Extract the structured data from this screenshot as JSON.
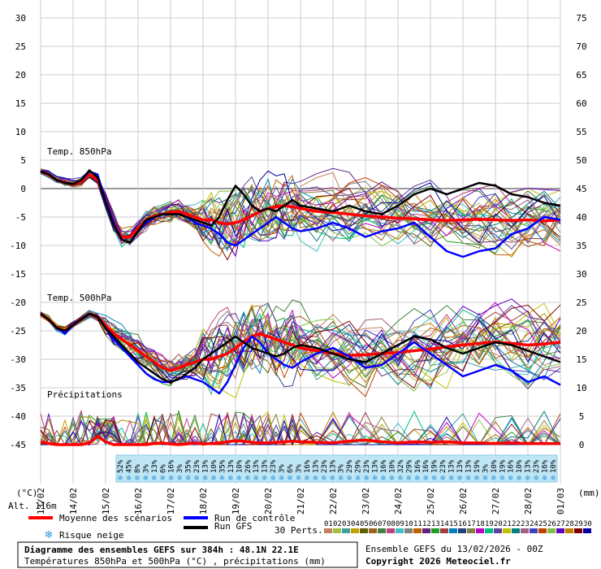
{
  "chart_data": {
    "type": "line",
    "title": "Diagramme des ensembles GEFS sur 384h : 48.1N 22.1E",
    "subtitle": "Températures 850hPa et 500hPa (°C) , précipitations (mm)",
    "ensemble_label": "Ensemble GEFS du 13/02/2026 - 00Z",
    "copyright": "Copyright 2026 Meteociel.fr",
    "altitude_label": "Alt. 116m",
    "left_unit": "(°C)",
    "right_unit": "(mm)",
    "left_ticks": [
      30,
      25,
      20,
      15,
      10,
      5,
      0,
      -5,
      -10,
      -15,
      -20,
      -25,
      -30,
      -35,
      -40,
      -45
    ],
    "right_ticks": [
      75,
      70,
      65,
      60,
      55,
      50,
      45,
      40,
      35,
      30,
      25,
      20,
      15,
      10,
      5,
      0
    ],
    "x_ticks": [
      "13/02",
      "14/02",
      "15/02",
      "16/02",
      "17/02",
      "18/02",
      "19/02",
      "20/02",
      "21/02",
      "22/02",
      "23/02",
      "24/02",
      "25/02",
      "26/02",
      "27/02",
      "28/02",
      "01/03"
    ],
    "ylim": [
      -45,
      30
    ],
    "y2lim": [
      0,
      75
    ],
    "panels": [
      {
        "name": "Temp. 850hPa"
      },
      {
        "name": "Temp. 500hPa"
      },
      {
        "name": "Précipitations"
      }
    ],
    "x_days": [
      0,
      0.25,
      0.5,
      0.75,
      1,
      1.25,
      1.5,
      1.75,
      2,
      2.25,
      2.5,
      2.75,
      3,
      3.25,
      3.5,
      3.75,
      4,
      4.25,
      4.5,
      4.75,
      5,
      5.25,
      5.5,
      5.75,
      6,
      6.25,
      6.5,
      6.75,
      7,
      7.25,
      7.5,
      7.75,
      8,
      8.5,
      9,
      9.5,
      10,
      10.5,
      11,
      11.5,
      12,
      12.5,
      13,
      13.5,
      14,
      14.5,
      15,
      15.5,
      16
    ],
    "series": [
      {
        "name": "Moyenne des scénarios",
        "color": "#ff0000",
        "panel": "t850",
        "values": [
          3,
          2.5,
          1.5,
          1,
          0.8,
          1.2,
          2.5,
          1.5,
          -2,
          -6,
          -8.5,
          -8.5,
          -7,
          -5.5,
          -4.8,
          -4.5,
          -4.2,
          -4,
          -4.5,
          -5,
          -5.5,
          -5.5,
          -6,
          -6.2,
          -6,
          -5.5,
          -4.8,
          -4,
          -3.5,
          -3.2,
          -3,
          -3.2,
          -3.5,
          -4,
          -4.2,
          -4.5,
          -4.8,
          -5,
          -5.2,
          -5.3,
          -5.5,
          -5.6,
          -5.5,
          -5.4,
          -5.5,
          -5.6,
          -5.5,
          -5.7,
          -5.5
        ]
      },
      {
        "name": "Run de contrôle",
        "color": "#0000ff",
        "panel": "t850",
        "values": [
          3,
          2.5,
          1.5,
          1,
          0.8,
          1.5,
          3,
          2.5,
          -2,
          -6,
          -9,
          -9.5,
          -7.5,
          -6,
          -5,
          -4.5,
          -4.5,
          -4.5,
          -5,
          -6,
          -6.5,
          -7,
          -8,
          -9.5,
          -10,
          -9,
          -8,
          -7,
          -6,
          -5,
          -6,
          -7,
          -7.5,
          -7,
          -6,
          -7,
          -8.5,
          -7.5,
          -7,
          -6,
          -8.5,
          -11,
          -12,
          -11,
          -10.5,
          -8,
          -7,
          -5,
          -5.5
        ]
      },
      {
        "name": "Run GFS",
        "color": "#000000",
        "panel": "t850",
        "values": [
          3,
          2.5,
          1.5,
          1,
          0.8,
          1.5,
          3.2,
          2,
          -2.5,
          -6.5,
          -9,
          -9.5,
          -7.5,
          -5.5,
          -5,
          -4.5,
          -4.5,
          -4.5,
          -5,
          -5.5,
          -6,
          -6.5,
          -5,
          -2,
          0.5,
          -1,
          -3,
          -4,
          -3.5,
          -4,
          -3,
          -2,
          -3,
          -3.5,
          -4,
          -3,
          -4,
          -4.5,
          -3,
          -1,
          0,
          -1,
          0,
          1,
          0.5,
          -1,
          -1.5,
          -2.5,
          -3
        ]
      },
      {
        "name": "Moyenne des scénarios",
        "color": "#ff0000",
        "panel": "t500",
        "values": [
          -22,
          -23,
          -24.5,
          -25,
          -24,
          -23,
          -22,
          -22.5,
          -24,
          -25.5,
          -26.5,
          -27.5,
          -28.5,
          -29.5,
          -30.5,
          -31.5,
          -32,
          -31.5,
          -31,
          -30.5,
          -30,
          -30,
          -29.5,
          -29,
          -28,
          -27,
          -26,
          -25.5,
          -26,
          -26.5,
          -27,
          -27.5,
          -28,
          -28.5,
          -29,
          -29.3,
          -29.2,
          -29,
          -28.8,
          -28.5,
          -28.2,
          -27.8,
          -27.5,
          -27.2,
          -27,
          -27.2,
          -27.5,
          -27.3,
          -27
        ]
      },
      {
        "name": "Run de contrôle",
        "color": "#0000ff",
        "panel": "t500",
        "values": [
          -22,
          -23,
          -24.5,
          -25.5,
          -24,
          -23,
          -22,
          -22.5,
          -24.5,
          -26.5,
          -28,
          -29.5,
          -31,
          -32.5,
          -33.5,
          -34,
          -34,
          -33.5,
          -33,
          -33.5,
          -34,
          -35,
          -36,
          -34,
          -31,
          -28,
          -26,
          -27,
          -29,
          -30,
          -31,
          -31.5,
          -30.5,
          -29,
          -28,
          -29.5,
          -31.5,
          -31,
          -29,
          -27,
          -29,
          -31,
          -33,
          -32,
          -31,
          -32,
          -34,
          -33,
          -34.5
        ]
      },
      {
        "name": "Run GFS",
        "color": "#000000",
        "panel": "t500",
        "values": [
          -22,
          -23,
          -24.5,
          -25,
          -24,
          -23,
          -22,
          -22.5,
          -24.5,
          -26,
          -27.5,
          -29,
          -30.5,
          -31.5,
          -32.5,
          -33.5,
          -34,
          -33.5,
          -32.5,
          -31.5,
          -30,
          -29,
          -28,
          -27,
          -26,
          -27,
          -28,
          -28.5,
          -29,
          -29.5,
          -29,
          -28,
          -27.5,
          -28,
          -29,
          -30,
          -30.5,
          -29,
          -27.5,
          -26,
          -26.5,
          -28,
          -29,
          -28,
          -27,
          -27.5,
          -28.5,
          -29.5,
          -30.5
        ]
      },
      {
        "name": "Moyenne des scénarios",
        "color": "#ff0000",
        "panel": "precip",
        "values": [
          0.5,
          0.2,
          0,
          0,
          0,
          0,
          0.3,
          1.5,
          0.5,
          0,
          0,
          0,
          0,
          0,
          0.2,
          0.3,
          0.1,
          0,
          0.1,
          0.3,
          0.1,
          0.2,
          0.3,
          0.5,
          0.7,
          0.6,
          0.4,
          0.3,
          0.3,
          0.4,
          0.5,
          0.6,
          0.5,
          0.4,
          0.3,
          0.6,
          0.8,
          0.5,
          0.3,
          0.5,
          0.4,
          0.5,
          0.3,
          0.3,
          0.2,
          0.3,
          0.2,
          0.2,
          0.2
        ]
      }
    ],
    "snow_risk_pct": [
      "52%",
      "45%",
      "8%",
      "3%",
      "13%",
      "6%",
      "16%",
      "3%",
      "35%",
      "23%",
      "13%",
      "10%",
      "35%",
      "13%",
      "10%",
      "26%",
      "13%",
      "13%",
      "23%",
      "3%",
      "6%",
      "3%",
      "16%",
      "13%",
      "23%",
      "13%",
      "3%",
      "29%",
      "29%",
      "23%",
      "13%",
      "16%",
      "10%",
      "32%",
      "29%",
      "16%",
      "16%",
      "19%",
      "23%",
      "13%",
      "13%",
      "13%",
      "19%",
      "3%",
      "10%",
      "19%",
      "16%",
      "10%",
      "13%",
      "23%",
      "16%",
      "10%"
    ],
    "perts_label": "30 Perts.",
    "perts": [
      "01",
      "02",
      "03",
      "04",
      "05",
      "06",
      "07",
      "08",
      "09",
      "10",
      "11",
      "12",
      "13",
      "14",
      "15",
      "16",
      "17",
      "18",
      "19",
      "20",
      "21",
      "22",
      "23",
      "24",
      "25",
      "26",
      "27",
      "28",
      "29",
      "30"
    ],
    "pert_colors": [
      "#c08060",
      "#a0c040",
      "#40a0a0",
      "#c0a000",
      "#606000",
      "#a06020",
      "#408040",
      "#c04080",
      "#40c0c0",
      "#808080",
      "#c06000",
      "#602080",
      "#20a020",
      "#a04040",
      "#0080c0",
      "#204080",
      "#808040",
      "#c000c0",
      "#00c080",
      "#6040a0",
      "#c0c000",
      "#008080",
      "#a06080",
      "#4040c0",
      "#c04000",
      "#80c040",
      "#6000c0",
      "#c08000",
      "#800000",
      "#0000a0"
    ],
    "legend": {
      "mean": "Moyenne des scénarios",
      "control": "Run de contrôle",
      "gfs": "Run GFS",
      "snow": "Risque neige"
    },
    "grid": true
  }
}
